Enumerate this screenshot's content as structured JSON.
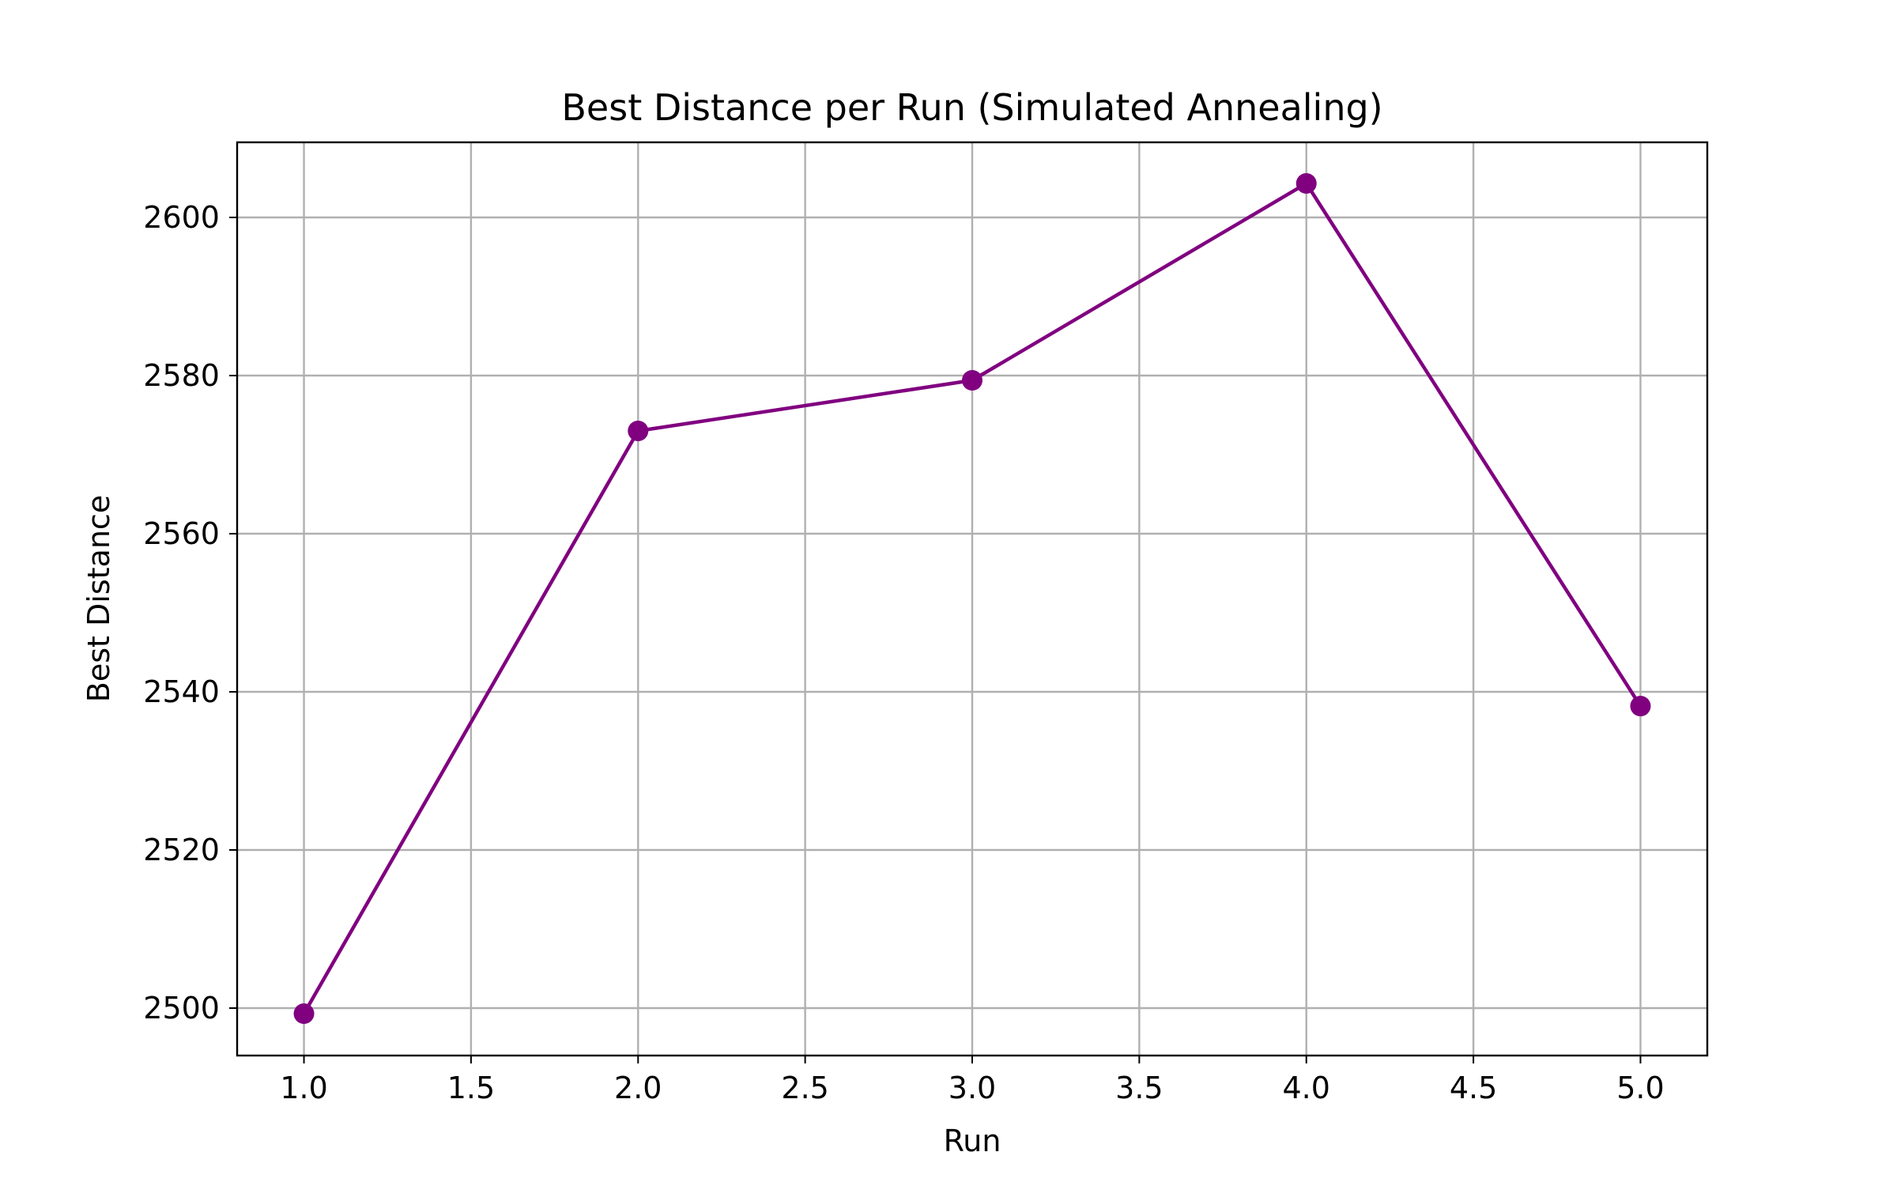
{
  "chart_data": {
    "type": "line",
    "title": "Best Distance per Run (Simulated Annealing)",
    "xlabel": "Run",
    "ylabel": "Best Distance",
    "xlim": [
      0.8,
      5.2
    ],
    "ylim": [
      2494,
      2609.5
    ],
    "xticks": [
      1.0,
      1.5,
      2.0,
      2.5,
      3.0,
      3.5,
      4.0,
      4.5,
      5.0
    ],
    "xtick_labels": [
      "1.0",
      "1.5",
      "2.0",
      "2.5",
      "3.0",
      "3.5",
      "4.0",
      "4.5",
      "5.0"
    ],
    "yticks": [
      2500,
      2520,
      2540,
      2560,
      2580,
      2600
    ],
    "ytick_labels": [
      "2500",
      "2520",
      "2540",
      "2560",
      "2580",
      "2600"
    ],
    "grid": true,
    "legend": "none",
    "series": [
      {
        "x": [
          1,
          2,
          3,
          4,
          5
        ],
        "y": [
          2499.3,
          2573.0,
          2579.4,
          2604.3,
          2538.2
        ],
        "color": "#800080",
        "marker": "circle"
      }
    ]
  }
}
